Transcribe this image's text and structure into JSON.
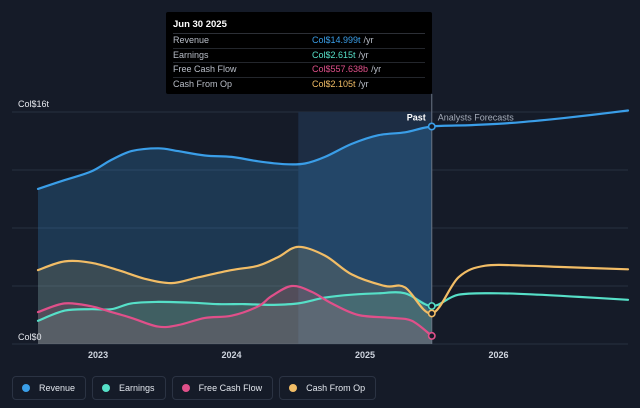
{
  "tooltip": {
    "date": "Jun 30 2025",
    "rows": [
      {
        "label": "Revenue",
        "value": "Col$14.999t",
        "unit": "/yr",
        "color": "#3a9ee8"
      },
      {
        "label": "Earnings",
        "value": "Col$2.615t",
        "unit": "/yr",
        "color": "#56e0c8"
      },
      {
        "label": "Free Cash Flow",
        "value": "Col$557.638b",
        "unit": "/yr",
        "color": "#e0508a"
      },
      {
        "label": "Cash From Op",
        "value": "Col$2.105t",
        "unit": "/yr",
        "color": "#f2bd66"
      }
    ]
  },
  "legend": [
    {
      "label": "Revenue",
      "color": "#3a9ee8"
    },
    {
      "label": "Earnings",
      "color": "#56e0c8"
    },
    {
      "label": "Free Cash Flow",
      "color": "#e0508a"
    },
    {
      "label": "Cash From Op",
      "color": "#f2bd66"
    }
  ],
  "chart_data": {
    "type": "line",
    "y_unit_labels": {
      "top": "Col$16t",
      "bottom": "Col$0"
    },
    "ylim": [
      0,
      16
    ],
    "xlim": [
      2022.55,
      2026.97
    ],
    "x_ticks": [
      2023,
      2024,
      2025,
      2026
    ],
    "past_label": "Past",
    "forecast_label": "Analysts Forecasts",
    "divider_x": 2025.5,
    "highlight_start_x": 2024.5,
    "series": [
      {
        "name": "Revenue",
        "color": "#3a9ee8",
        "points": [
          [
            2022.55,
            10.7
          ],
          [
            2022.75,
            11.3
          ],
          [
            2022.95,
            11.9
          ],
          [
            2023.1,
            12.7
          ],
          [
            2023.25,
            13.3
          ],
          [
            2023.45,
            13.5
          ],
          [
            2023.6,
            13.3
          ],
          [
            2023.8,
            13.0
          ],
          [
            2024.0,
            12.9
          ],
          [
            2024.2,
            12.6
          ],
          [
            2024.4,
            12.4
          ],
          [
            2024.55,
            12.45
          ],
          [
            2024.7,
            12.9
          ],
          [
            2024.9,
            13.8
          ],
          [
            2025.1,
            14.4
          ],
          [
            2025.3,
            14.6
          ],
          [
            2025.5,
            14.999
          ],
          [
            2025.8,
            15.1
          ],
          [
            2026.1,
            15.25
          ],
          [
            2026.4,
            15.5
          ],
          [
            2026.7,
            15.8
          ],
          [
            2026.97,
            16.1
          ]
        ]
      },
      {
        "name": "Earnings",
        "color": "#56e0c8",
        "points": [
          [
            2022.55,
            1.6
          ],
          [
            2022.75,
            2.3
          ],
          [
            2022.95,
            2.4
          ],
          [
            2023.1,
            2.4
          ],
          [
            2023.25,
            2.8
          ],
          [
            2023.45,
            2.9
          ],
          [
            2023.7,
            2.85
          ],
          [
            2023.9,
            2.75
          ],
          [
            2024.1,
            2.75
          ],
          [
            2024.3,
            2.7
          ],
          [
            2024.5,
            2.8
          ],
          [
            2024.7,
            3.2
          ],
          [
            2024.9,
            3.4
          ],
          [
            2025.1,
            3.5
          ],
          [
            2025.3,
            3.5
          ],
          [
            2025.5,
            2.615
          ],
          [
            2025.7,
            3.4
          ],
          [
            2026.0,
            3.5
          ],
          [
            2026.3,
            3.4
          ],
          [
            2026.6,
            3.25
          ],
          [
            2026.97,
            3.05
          ]
        ]
      },
      {
        "name": "Free Cash Flow",
        "color": "#e0508a",
        "points": [
          [
            2022.55,
            2.2
          ],
          [
            2022.75,
            2.8
          ],
          [
            2022.95,
            2.6
          ],
          [
            2023.1,
            2.2
          ],
          [
            2023.25,
            1.8
          ],
          [
            2023.45,
            1.2
          ],
          [
            2023.6,
            1.3
          ],
          [
            2023.8,
            1.8
          ],
          [
            2024.0,
            1.95
          ],
          [
            2024.2,
            2.6
          ],
          [
            2024.3,
            3.3
          ],
          [
            2024.45,
            4.0
          ],
          [
            2024.6,
            3.6
          ],
          [
            2024.75,
            2.8
          ],
          [
            2024.95,
            2.0
          ],
          [
            2025.2,
            1.8
          ],
          [
            2025.35,
            1.6
          ],
          [
            2025.5,
            0.557638
          ]
        ]
      },
      {
        "name": "Cash From Op",
        "color": "#f2bd66",
        "points": [
          [
            2022.55,
            5.1
          ],
          [
            2022.75,
            5.7
          ],
          [
            2022.95,
            5.6
          ],
          [
            2023.15,
            5.1
          ],
          [
            2023.35,
            4.5
          ],
          [
            2023.55,
            4.2
          ],
          [
            2023.75,
            4.6
          ],
          [
            2024.0,
            5.1
          ],
          [
            2024.2,
            5.4
          ],
          [
            2024.35,
            6.0
          ],
          [
            2024.5,
            6.7
          ],
          [
            2024.7,
            6.1
          ],
          [
            2024.9,
            4.8
          ],
          [
            2025.15,
            4.0
          ],
          [
            2025.3,
            3.9
          ],
          [
            2025.5,
            2.105
          ],
          [
            2025.7,
            4.6
          ],
          [
            2025.9,
            5.4
          ],
          [
            2026.2,
            5.4
          ],
          [
            2026.5,
            5.3
          ],
          [
            2026.97,
            5.15
          ]
        ]
      }
    ]
  }
}
